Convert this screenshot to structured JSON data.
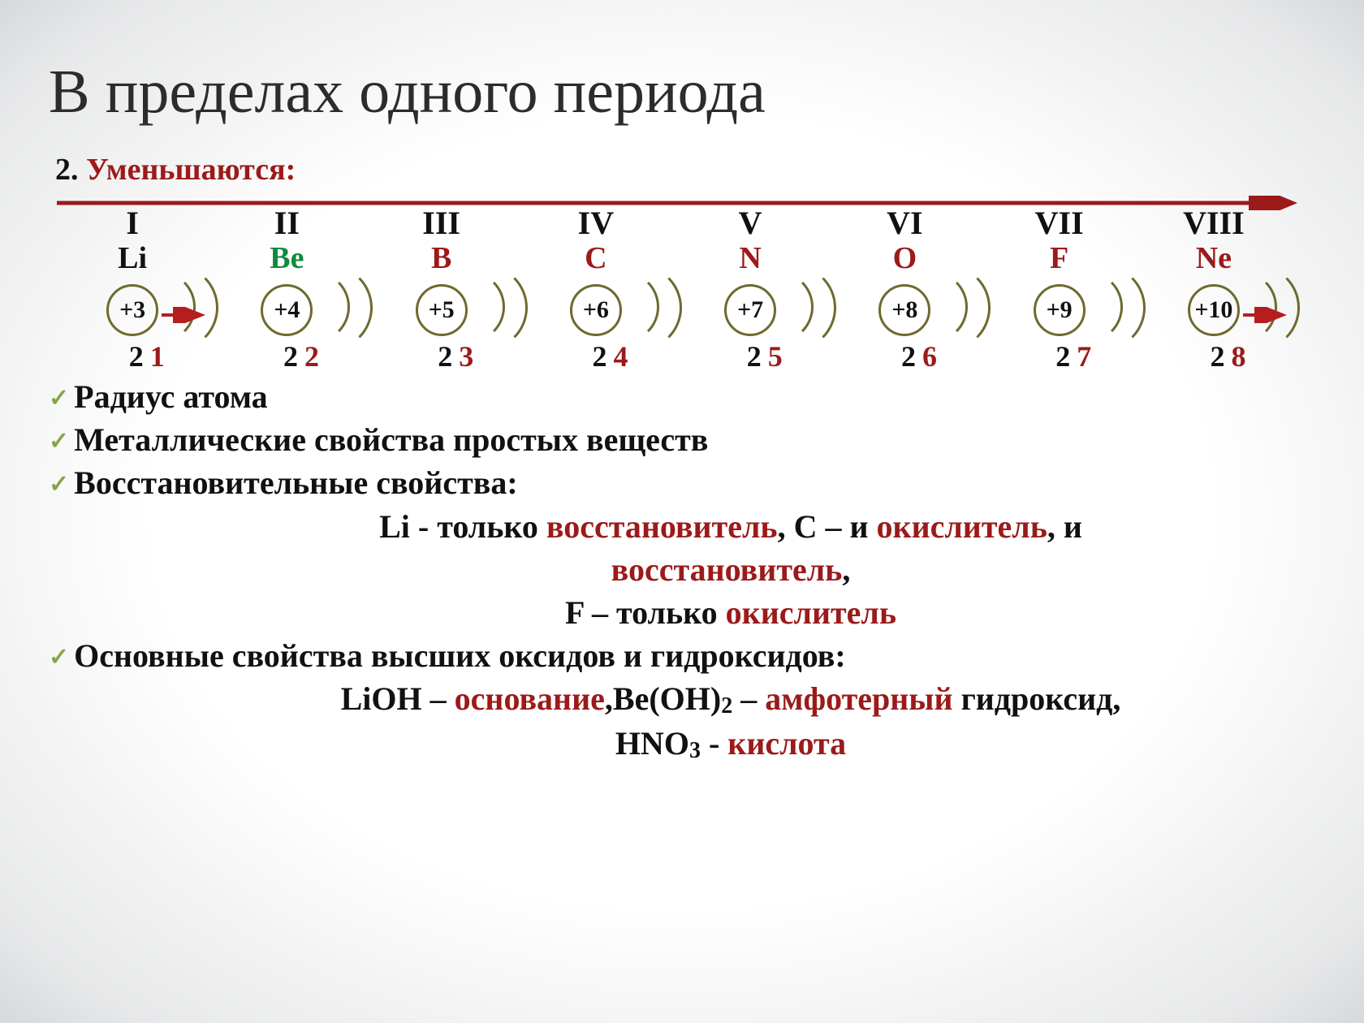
{
  "title": "В пределах одного периода",
  "heading_prefix": "2. ",
  "heading_word": "Уменьшаются:",
  "colors": {
    "accent": "#9c1a1a",
    "green": "#0f8a3c",
    "check": "#86a547",
    "ring": "#6e6a2f",
    "text": "#111111"
  },
  "elements": [
    {
      "roman": "I",
      "sym": "Li",
      "sym_color": "#111111",
      "nucleus": "+3",
      "shell1": "2",
      "shell2": "1"
    },
    {
      "roman": "II",
      "sym": "Be",
      "sym_color": "#0f8a3c",
      "nucleus": "+4",
      "shell1": "2",
      "shell2": "2"
    },
    {
      "roman": "III",
      "sym": "B",
      "sym_color": "#9c1a1a",
      "nucleus": "+5",
      "shell1": "2",
      "shell2": "3"
    },
    {
      "roman": "IV",
      "sym": "C",
      "sym_color": "#9c1a1a",
      "nucleus": "+6",
      "shell1": "2",
      "shell2": "4"
    },
    {
      "roman": "V",
      "sym": "N",
      "sym_color": "#9c1a1a",
      "nucleus": "+7",
      "shell1": "2",
      "shell2": "5"
    },
    {
      "roman": "VI",
      "sym": "O",
      "sym_color": "#9c1a1a",
      "nucleus": "+8",
      "shell1": "2",
      "shell2": "6"
    },
    {
      "roman": "VII",
      "sym": "F",
      "sym_color": "#9c1a1a",
      "nucleus": "+9",
      "shell1": "2",
      "shell2": "7"
    },
    {
      "roman": "VIII",
      "sym": "Ne",
      "sym_color": "#9c1a1a",
      "nucleus": "+10",
      "shell1": "2",
      "shell2": "8"
    }
  ],
  "bullets": {
    "b1": "Радиус атома",
    "b2": "Металлические свойства простых веществ",
    "b3": "Восстановительные свойства:",
    "redox_line1_a": "Li - только ",
    "redox_line1_b": "восстановитель",
    "redox_line1_c": ", C – и ",
    "redox_line1_d": "окислитель",
    "redox_line1_e": ", и",
    "redox_line2": "восстановитель",
    "redox_line2_tail": ",",
    "redox_line3_a": "F – только ",
    "redox_line3_b": "окислитель",
    "b4": "Основные свойства высших оксидов и гидроксидов:",
    "ox_line1_a": "LiOH – ",
    "ox_line1_b": "основание",
    "ox_line1_c": ",Be(OH)",
    "ox_line1_sub": "2",
    "ox_line1_d": " – ",
    "ox_line1_e": "амфотерный",
    "ox_line1_f": " гидроксид,",
    "ox_line2_a": "HNO",
    "ox_line2_sub": "3",
    "ox_line2_b": " - ",
    "ox_line2_c": "кислота"
  },
  "arrow": {
    "stroke": "#9c1a1a",
    "width": 5
  }
}
